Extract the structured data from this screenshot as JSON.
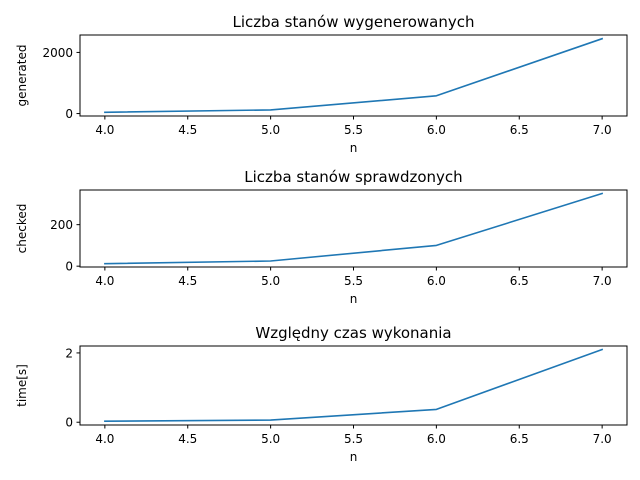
{
  "chart_data": [
    {
      "type": "line",
      "title": "Liczba stanów wygenerowanych",
      "xlabel": "n",
      "ylabel": "generated",
      "x": [
        4,
        5,
        6,
        7
      ],
      "series": [
        {
          "values": [
            40,
            120,
            580,
            2450
          ]
        }
      ],
      "xlim": [
        3.85,
        7.15
      ],
      "ylim": [
        -80,
        2570
      ],
      "xticks": [
        "4.0",
        "4.5",
        "5.0",
        "5.5",
        "6.0",
        "6.5",
        "7.0"
      ],
      "yticks": [
        "0",
        "2000"
      ],
      "grid": false,
      "color": "#1f77b4"
    },
    {
      "type": "line",
      "title": "Liczba stanów sprawdzonych",
      "xlabel": "n",
      "ylabel": "checked",
      "x": [
        4,
        5,
        6,
        7
      ],
      "series": [
        {
          "values": [
            12,
            25,
            100,
            350
          ]
        }
      ],
      "xlim": [
        3.85,
        7.15
      ],
      "ylim": [
        -4,
        367
      ],
      "xticks": [
        "4.0",
        "4.5",
        "5.0",
        "5.5",
        "6.0",
        "6.5",
        "7.0"
      ],
      "yticks": [
        "0",
        "200"
      ],
      "grid": false,
      "color": "#1f77b4"
    },
    {
      "type": "line",
      "title": "Względny czas wykonania",
      "xlabel": "n",
      "ylabel": "time[s]",
      "x": [
        4,
        5,
        6,
        7
      ],
      "series": [
        {
          "values": [
            0.03,
            0.06,
            0.37,
            2.1
          ]
        }
      ],
      "xlim": [
        3.85,
        7.15
      ],
      "ylim": [
        -0.08,
        2.2
      ],
      "xticks": [
        "4.0",
        "4.5",
        "5.0",
        "5.5",
        "6.0",
        "6.5",
        "7.0"
      ],
      "yticks": [
        "0",
        "2"
      ],
      "grid": false,
      "color": "#1f77b4"
    }
  ]
}
